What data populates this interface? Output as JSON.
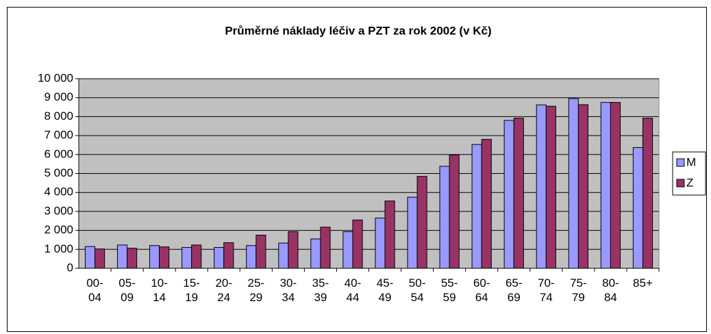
{
  "chart_data": {
    "type": "bar",
    "title": "Průměrné náklady léčiv a PZT za rok 2002 (v Kč)",
    "categories": [
      "00-04",
      "05-09",
      "10-14",
      "15-19",
      "20-24",
      "25-29",
      "30-34",
      "35-39",
      "40-44",
      "45-49",
      "50-54",
      "55-59",
      "60-64",
      "65-69",
      "70-74",
      "75-79",
      "80-84",
      "85+"
    ],
    "series": [
      {
        "name": "M",
        "color": "#9999ff",
        "values": [
          1150,
          1230,
          1200,
          1100,
          1100,
          1200,
          1330,
          1550,
          1930,
          2650,
          3750,
          5380,
          6530,
          7800,
          8620,
          8950,
          8750,
          6370
        ]
      },
      {
        "name": "Z",
        "color": "#993366",
        "values": [
          1020,
          1060,
          1130,
          1230,
          1350,
          1750,
          1930,
          2170,
          2550,
          3550,
          4850,
          5980,
          6800,
          7920,
          8550,
          8630,
          8750,
          7920
        ]
      }
    ],
    "ylim": [
      0,
      10000
    ],
    "yticks": [
      0,
      {
        "value": 1000,
        "label": "1 000"
      },
      {
        "value": 2000,
        "label": "2 000"
      },
      {
        "value": 3000,
        "label": "3 000"
      },
      {
        "value": 4000,
        "label": "4 000"
      },
      {
        "value": 5000,
        "label": "5 000"
      },
      {
        "value": 6000,
        "label": "6 000"
      },
      {
        "value": 7000,
        "label": "7 000"
      },
      {
        "value": 8000,
        "label": "8 000"
      },
      {
        "value": 9000,
        "label": "9 000"
      },
      {
        "value": 10000,
        "label": "10 000"
      }
    ],
    "grid": true,
    "legend": "right",
    "plot_background": "#c0c0c0"
  }
}
